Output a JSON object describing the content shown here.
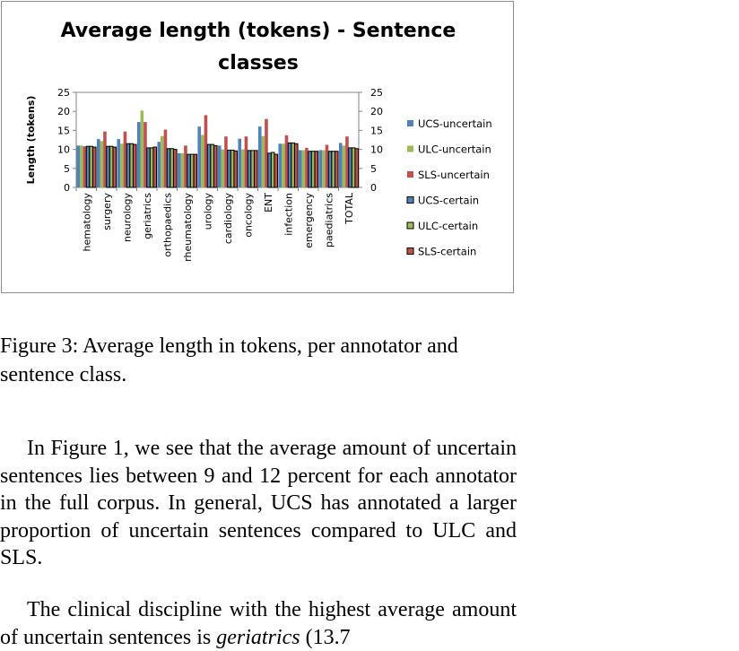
{
  "chart_data": {
    "type": "bar",
    "title_line1": "Average length (tokens) - Sentence",
    "title_line2": "classes",
    "ylabel": "Length (tokens)",
    "ylim": [
      0,
      25
    ],
    "yticks": [
      "0",
      "5",
      "10",
      "15",
      "20",
      "25"
    ],
    "categories": [
      "hematology",
      "surgery",
      "neurology",
      "geriatrics",
      "orthopaedics",
      "rheumatology",
      "urology",
      "cardiology",
      "oncology",
      "ENT",
      "infection",
      "emergency",
      "paediatrics",
      "TOTAL"
    ],
    "series": [
      {
        "name": "UCS-uncertain",
        "color": "#4f81bd",
        "outlined": false,
        "values": [
          11,
          12.7,
          12.7,
          17.2,
          12,
          9,
          16,
          11,
          12.8,
          16,
          11.5,
          9.8,
          9.8,
          11.7
        ]
      },
      {
        "name": "ULC-uncertain",
        "color": "#9bbb59",
        "outlined": false,
        "values": [
          11,
          12.2,
          11.5,
          20.2,
          13.5,
          9,
          13.8,
          10,
          10,
          13.5,
          11.5,
          9.8,
          9.8,
          11
        ]
      },
      {
        "name": "SLS-uncertain",
        "color": "#c0504d",
        "outlined": false,
        "values": [
          10.8,
          14.7,
          14.7,
          17.2,
          15.2,
          11,
          19,
          13.4,
          13.4,
          18,
          13.7,
          10.4,
          11.2,
          13.4
        ]
      },
      {
        "name": "UCS-certain",
        "color": "#4f81bd",
        "outlined": true,
        "values": [
          10.8,
          10.8,
          11.5,
          10.4,
          10.2,
          8.7,
          11.3,
          9.8,
          9.7,
          9,
          11.7,
          9.5,
          9.5,
          10.4
        ]
      },
      {
        "name": "ULC-certain",
        "color": "#9bbb59",
        "outlined": true,
        "values": [
          10.8,
          10.8,
          11.5,
          10.4,
          10.2,
          8.7,
          11.3,
          9.8,
          9.7,
          9.2,
          11.7,
          9.5,
          9.5,
          10.4
        ]
      },
      {
        "name": "SLS-certain",
        "color": "#c0504d",
        "outlined": true,
        "values": [
          10.6,
          10.6,
          11.3,
          10.6,
          10,
          8.7,
          11,
          9.6,
          9.7,
          8.7,
          11.5,
          9.5,
          9.5,
          10.2
        ]
      }
    ],
    "legend_position": "right",
    "grid": false
  },
  "caption": "Figure 3: Average length in tokens, per annotator and sentence class.",
  "paragraphs": {
    "p1": "In Figure 1, we see that the average amount of uncertain sentences lies between 9 and 12 percent for each annotator in the full corpus. In general, UCS has annotated a larger proportion of uncertain sentences compared to ULC and SLS.",
    "p2_start": "The clinical discipline with the highest average amount of uncertain sentences is",
    "p2_ital": "geriatrics",
    "p2_end": "(13.7"
  }
}
